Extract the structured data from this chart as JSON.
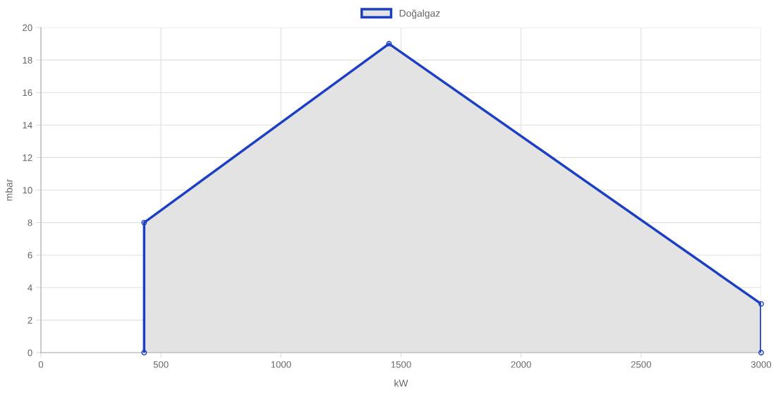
{
  "chart_data": {
    "type": "area",
    "xlabel": "kW",
    "ylabel": "mbar",
    "series": [
      {
        "name": "Doğalgaz",
        "color": "#1c3fc4",
        "x": [
          430,
          430,
          1450,
          3000,
          3000
        ],
        "values": [
          0,
          8,
          19,
          3,
          0
        ]
      }
    ],
    "xlim": [
      0,
      3000
    ],
    "xticks": [
      0,
      500,
      1000,
      1500,
      2000,
      2500,
      3000
    ],
    "ylim": [
      0,
      20
    ],
    "yticks": [
      0,
      2,
      4,
      6,
      8,
      10,
      12,
      14,
      16,
      18,
      20
    ],
    "grid": true,
    "legend": "top",
    "marker": "circle",
    "line_style": "solid"
  }
}
